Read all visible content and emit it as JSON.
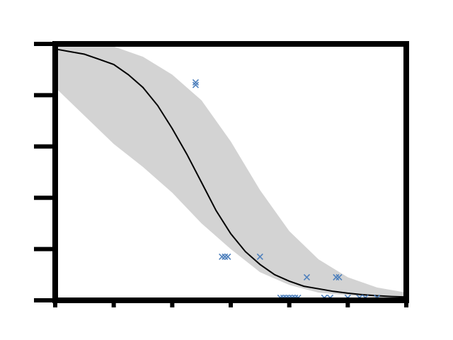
{
  "chart_data": {
    "type": "scatter",
    "title": "",
    "xlabel": "",
    "ylabel": "",
    "xlim": [
      0,
      12
    ],
    "ylim": [
      0,
      1
    ],
    "x_ticks": [
      0,
      2,
      4,
      6,
      8,
      10,
      12
    ],
    "y_ticks": [
      0,
      0.2,
      0.4,
      0.6,
      0.8,
      1.0
    ],
    "tick_labels_legible": false,
    "grid": false,
    "colors": {
      "points": "#4f81bd",
      "curve": "#000000",
      "band": "#d3d3d3",
      "frame": "#000000"
    },
    "band": {
      "x": [
        0,
        1,
        2,
        3,
        4,
        5,
        6,
        7,
        8,
        9,
        10,
        11,
        12
      ],
      "lower": [
        0.83,
        0.72,
        0.61,
        0.52,
        0.42,
        0.3,
        0.2,
        0.11,
        0.06,
        0.03,
        0.02,
        0.01,
        0.01
      ],
      "upper": [
        1.0,
        1.0,
        0.99,
        0.95,
        0.88,
        0.78,
        0.62,
        0.43,
        0.27,
        0.16,
        0.09,
        0.05,
        0.03
      ]
    },
    "series": [
      {
        "kind": "curve",
        "x": [
          0,
          0.5,
          1,
          1.5,
          2,
          2.5,
          3,
          3.5,
          4,
          4.5,
          5,
          5.5,
          6,
          6.5,
          7,
          7.5,
          8,
          8.5,
          9,
          9.5,
          10,
          10.5,
          11,
          11.5,
          12
        ],
        "y": [
          0.98,
          0.97,
          0.96,
          0.94,
          0.92,
          0.88,
          0.83,
          0.76,
          0.67,
          0.57,
          0.46,
          0.35,
          0.26,
          0.19,
          0.14,
          0.1,
          0.075,
          0.055,
          0.045,
          0.035,
          0.028,
          0.022,
          0.018,
          0.015,
          0.013
        ]
      },
      {
        "kind": "points",
        "marker": "x",
        "points": [
          [
            4.8,
            0.84
          ],
          [
            4.8,
            0.85
          ],
          [
            5.7,
            0.17
          ],
          [
            5.8,
            0.17
          ],
          [
            5.9,
            0.17
          ],
          [
            7.0,
            0.17
          ],
          [
            7.7,
            0.01
          ],
          [
            7.8,
            0.01
          ],
          [
            7.9,
            0.01
          ],
          [
            8.0,
            0.01
          ],
          [
            8.1,
            0.01
          ],
          [
            8.2,
            0.01
          ],
          [
            8.3,
            0.01
          ],
          [
            8.6,
            0.09
          ],
          [
            9.2,
            0.01
          ],
          [
            9.4,
            0.01
          ],
          [
            9.6,
            0.09
          ],
          [
            9.7,
            0.09
          ],
          [
            10.0,
            0.01
          ],
          [
            10.4,
            0.01
          ],
          [
            10.6,
            0.01
          ],
          [
            11.0,
            0.01
          ]
        ]
      }
    ]
  }
}
